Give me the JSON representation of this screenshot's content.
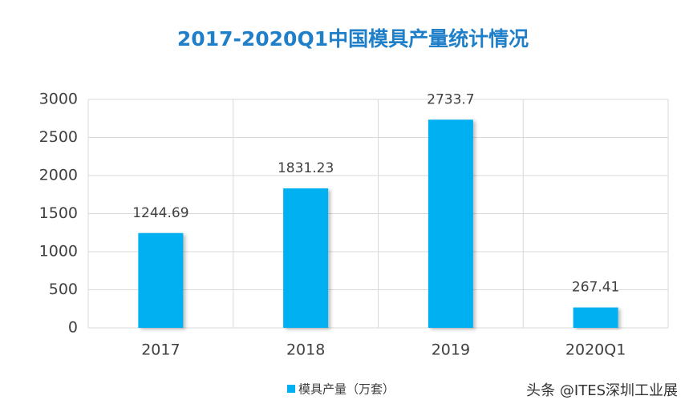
{
  "chart_data": {
    "type": "bar",
    "title": "2017-2020Q1中国模具产量统计情况",
    "categories": [
      "2017",
      "2018",
      "2019",
      "2020Q1"
    ],
    "series": [
      {
        "name": "模具产量（万套）",
        "color": "#00b0f0",
        "values": [
          1244.69,
          1831.23,
          2733.7,
          267.41
        ]
      }
    ],
    "ylim": [
      0,
      3000
    ],
    "yticks": [
      0,
      500,
      1000,
      1500,
      2000,
      2500,
      3000
    ],
    "grid": true,
    "legend": "bottom",
    "watermark": "头条 @ITES深圳工业展"
  }
}
